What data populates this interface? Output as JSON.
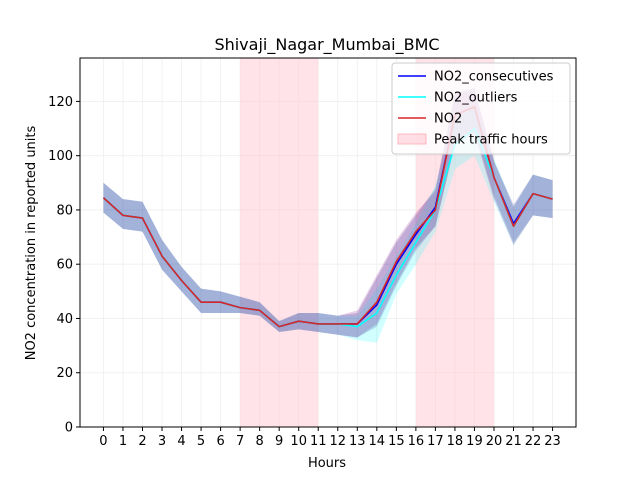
{
  "chart_data": {
    "type": "line",
    "title": "Shivaji_Nagar_Mumbai_BMC",
    "xlabel": "Hours",
    "ylabel": "NO2 concentration in reported units",
    "x": [
      0,
      1,
      2,
      3,
      4,
      5,
      6,
      7,
      8,
      9,
      10,
      11,
      12,
      13,
      14,
      15,
      16,
      17,
      18,
      19,
      20,
      21,
      22,
      23
    ],
    "xlim": [
      -1.2,
      24.2
    ],
    "ylim": [
      0,
      136
    ],
    "yticks": [
      0,
      20,
      40,
      60,
      80,
      100,
      120
    ],
    "grid": true,
    "legend_position": "top-right",
    "peak_traffic_hours": [
      [
        7,
        11
      ],
      [
        16,
        20
      ]
    ],
    "series": [
      {
        "name": "NO2_consecutives",
        "color": "#0000ff",
        "values": [
          84.5,
          78,
          77,
          63,
          54,
          46,
          46,
          44,
          43,
          37,
          39,
          38,
          38,
          38,
          45,
          60,
          71,
          81,
          115,
          118,
          92,
          75,
          86,
          84
        ],
        "band_low": [
          79,
          73,
          72,
          58,
          50,
          42,
          42,
          42,
          41,
          35,
          36,
          35,
          34,
          33,
          37,
          52,
          65,
          74,
          104,
          109,
          85,
          68,
          78,
          77
        ],
        "band_high": [
          90,
          84,
          83,
          69,
          59,
          51,
          50,
          48,
          46,
          39,
          42,
          42,
          41,
          42,
          55,
          68,
          78,
          88,
          123,
          125,
          98,
          82,
          93,
          91
        ],
        "band_color": "#00008b"
      },
      {
        "name": "NO2_outliers",
        "color": "#00ffff",
        "values": [
          84.5,
          78,
          77,
          63,
          54,
          46,
          46,
          44,
          43,
          37,
          39,
          38,
          38,
          37,
          42,
          56,
          68,
          80,
          104,
          110,
          92,
          74,
          86,
          84
        ],
        "band_low": [
          79,
          73,
          72,
          58,
          50,
          42,
          42,
          42,
          41,
          35,
          36,
          35,
          34,
          32,
          31,
          49,
          60,
          72,
          95,
          100,
          83,
          67,
          78,
          77
        ],
        "band_high": [
          90,
          84,
          83,
          69,
          59,
          51,
          50,
          48,
          46,
          39,
          42,
          42,
          41,
          41,
          51,
          63,
          75,
          89,
          113,
          118,
          99,
          81,
          93,
          91
        ],
        "band_color": "#00ffff"
      },
      {
        "name": "NO2",
        "color": "#d62728",
        "values": [
          84.5,
          78,
          77,
          63,
          54,
          46,
          46,
          44,
          43,
          37,
          39,
          38,
          38,
          38,
          46,
          61,
          72,
          80,
          115,
          118,
          92,
          74,
          86,
          84
        ],
        "band_low": [
          79,
          73,
          72,
          58,
          50,
          42,
          42,
          42,
          41,
          35,
          36,
          35,
          34,
          33,
          38,
          53,
          66,
          74,
          104,
          108,
          84,
          67,
          78,
          77
        ],
        "band_high": [
          90,
          84,
          83,
          69,
          59,
          51,
          50,
          48,
          46,
          39,
          42,
          42,
          41,
          43,
          56,
          69,
          79,
          87,
          123,
          124,
          98,
          81,
          93,
          91
        ],
        "band_color": "#800080"
      }
    ],
    "legend": [
      {
        "label": "NO2_consecutives",
        "kind": "line",
        "color": "#0000ff"
      },
      {
        "label": "NO2_outliers",
        "kind": "line",
        "color": "#00ffff"
      },
      {
        "label": "NO2",
        "kind": "line",
        "color": "#d62728"
      },
      {
        "label": "Peak traffic hours",
        "kind": "patch",
        "color": "#ffc0cb"
      }
    ]
  }
}
